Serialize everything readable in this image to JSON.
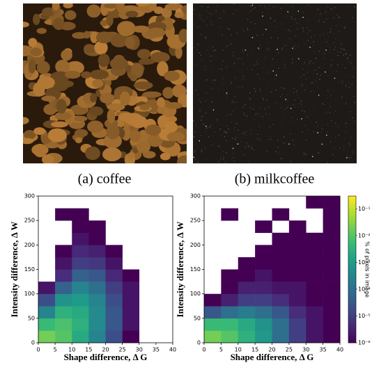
{
  "figure": {
    "images": [
      {
        "caption": "(a) coffee"
      },
      {
        "caption": "(b) milkcoffee"
      }
    ]
  },
  "chart_data": [
    {
      "type": "heatmap",
      "xlabel": "Shape difference, Δ G",
      "ylabel": "Intensity difference, Δ W",
      "xlim": [
        0,
        40
      ],
      "ylim": [
        0,
        300
      ],
      "xticks": [
        0,
        5,
        10,
        15,
        20,
        25,
        30,
        35,
        40
      ],
      "yticks": [
        0,
        50,
        100,
        150,
        200,
        250,
        300
      ],
      "xbins": [
        0,
        5,
        10,
        15,
        20,
        25,
        30,
        35,
        40
      ],
      "ybins": [
        0,
        25,
        50,
        75,
        100,
        125,
        150,
        175,
        200,
        225,
        250,
        275,
        300
      ],
      "z": [
        [
          0.02,
          0.01,
          0.002,
          0.0003,
          2e-05,
          1e-06,
          null,
          null
        ],
        [
          0.005,
          0.008,
          0.003,
          0.0004,
          3e-05,
          2e-06,
          null,
          null
        ],
        [
          0.0003,
          0.003,
          0.002,
          0.0004,
          3e-05,
          2e-06,
          null,
          null
        ],
        [
          2e-05,
          0.0006,
          0.001,
          0.0003,
          2e-05,
          2e-06,
          null,
          null
        ],
        [
          2e-06,
          5e-05,
          0.0003,
          0.0001,
          1e-05,
          2e-06,
          null,
          null
        ],
        [
          null,
          5e-06,
          5e-05,
          3e-05,
          4e-06,
          1e-06,
          null,
          null
        ],
        [
          null,
          2e-06,
          1e-05,
          8e-06,
          2e-06,
          null,
          null,
          null
        ],
        [
          null,
          1e-06,
          4e-06,
          3e-06,
          1e-06,
          null,
          null,
          null
        ],
        [
          null,
          null,
          2e-06,
          1e-06,
          null,
          null,
          null,
          null
        ],
        [
          null,
          null,
          1e-06,
          1e-06,
          null,
          null,
          null,
          null
        ],
        [
          null,
          1e-06,
          1e-06,
          null,
          null,
          null,
          null,
          null
        ],
        [
          null,
          null,
          null,
          null,
          null,
          null,
          null,
          null
        ]
      ]
    },
    {
      "type": "heatmap",
      "xlabel": "Shape difference, Δ G",
      "ylabel": "Intensity difference, Δ W",
      "xlim": [
        0,
        40
      ],
      "ylim": [
        0,
        300
      ],
      "xticks": [
        0,
        5,
        10,
        15,
        20,
        25,
        30,
        35,
        40
      ],
      "yticks": [
        0,
        50,
        100,
        150,
        200,
        250,
        300
      ],
      "xbins": [
        0,
        5,
        10,
        15,
        20,
        25,
        30,
        35,
        40
      ],
      "ybins": [
        0,
        25,
        50,
        75,
        100,
        125,
        150,
        175,
        200,
        225,
        250,
        275,
        300
      ],
      "z": [
        [
          0.02,
          0.01,
          0.003,
          0.0008,
          0.0001,
          1e-05,
          2e-06,
          1e-06
        ],
        [
          0.005,
          0.005,
          0.002,
          0.0006,
          0.0001,
          1e-05,
          2e-06,
          1e-06
        ],
        [
          3e-05,
          0.0001,
          0.0002,
          0.0001,
          3e-05,
          5e-06,
          2e-06,
          1e-06
        ],
        [
          1e-06,
          3e-06,
          1e-05,
          1e-05,
          5e-06,
          2e-06,
          1e-06,
          1e-06
        ],
        [
          null,
          1e-06,
          3e-06,
          3e-06,
          2e-06,
          2e-06,
          1e-06,
          1e-06
        ],
        [
          null,
          1e-06,
          1e-06,
          2e-06,
          1e-06,
          1e-06,
          1e-06,
          1e-06
        ],
        [
          null,
          null,
          1e-06,
          1e-06,
          1e-06,
          1e-06,
          1e-06,
          1e-06
        ],
        [
          null,
          null,
          null,
          1e-06,
          1e-06,
          1e-06,
          1e-06,
          1e-06
        ],
        [
          null,
          null,
          null,
          null,
          1e-06,
          1e-06,
          1e-06,
          1e-06
        ],
        [
          null,
          null,
          null,
          1e-06,
          null,
          1e-06,
          null,
          1e-06
        ],
        [
          null,
          1e-06,
          null,
          null,
          1e-06,
          null,
          null,
          1e-06
        ],
        [
          null,
          null,
          null,
          null,
          null,
          null,
          1e-06,
          1e-06
        ]
      ],
      "colorbar": {
        "label": "% of pixels in image",
        "log": true,
        "lim": [
          1e-06,
          0.3
        ],
        "ticks": [
          {
            "value": 0.1,
            "label": "10⁻¹"
          },
          {
            "value": 0.01,
            "label": "10⁻²"
          },
          {
            "value": 0.001,
            "label": "10⁻³"
          },
          {
            "value": 0.0001,
            "label": "10⁻⁴"
          },
          {
            "value": 1e-05,
            "label": "10⁻⁵"
          },
          {
            "value": 1e-06,
            "label": "10⁻⁶"
          }
        ]
      }
    }
  ]
}
